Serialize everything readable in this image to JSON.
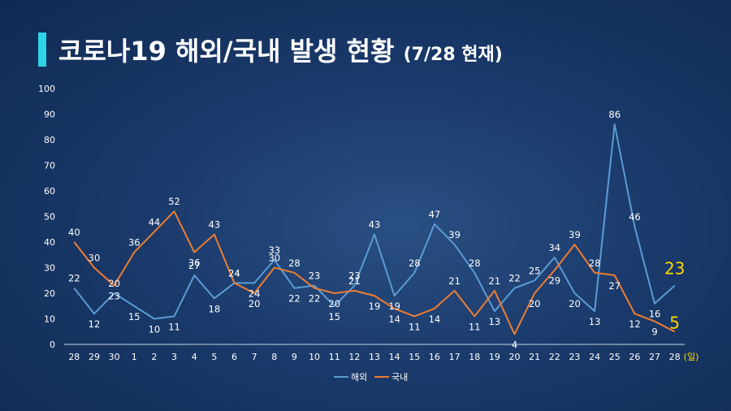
{
  "title": "코로나19 해외/국내 발생 현황",
  "subtitle": "(7/28 현재)",
  "x_unit": "(일)",
  "colors": {
    "overseas": "#5b9bd5",
    "domestic": "#ed7d31",
    "highlight": "#ffd800",
    "accent": "#2ed3e6"
  },
  "chart_data": {
    "type": "line",
    "categories": [
      "28",
      "29",
      "30",
      "1",
      "2",
      "3",
      "4",
      "5",
      "6",
      "7",
      "8",
      "9",
      "10",
      "11",
      "12",
      "13",
      "14",
      "15",
      "16",
      "17",
      "18",
      "19",
      "20",
      "21",
      "22",
      "23",
      "24",
      "25",
      "26",
      "27",
      "28"
    ],
    "ylim": [
      0,
      100
    ],
    "yticks": [
      0,
      10,
      20,
      30,
      40,
      50,
      60,
      70,
      80,
      90,
      100
    ],
    "legend_position": "bottom",
    "series": [
      {
        "name": "해외",
        "key": "overseas",
        "values": [
          22,
          12,
          20,
          15,
          10,
          11,
          27,
          18,
          24,
          24,
          33,
          22,
          23,
          15,
          23,
          43,
          19,
          28,
          47,
          39,
          28,
          13,
          22,
          25,
          34,
          20,
          13,
          86,
          46,
          16,
          23
        ]
      },
      {
        "name": "국내",
        "key": "domestic",
        "values": [
          40,
          30,
          23,
          36,
          44,
          52,
          36,
          43,
          24,
          20,
          30,
          28,
          22,
          20,
          21,
          19,
          14,
          11,
          14,
          21,
          11,
          21,
          4,
          20,
          29,
          39,
          28,
          27,
          12,
          9,
          5
        ]
      }
    ]
  }
}
